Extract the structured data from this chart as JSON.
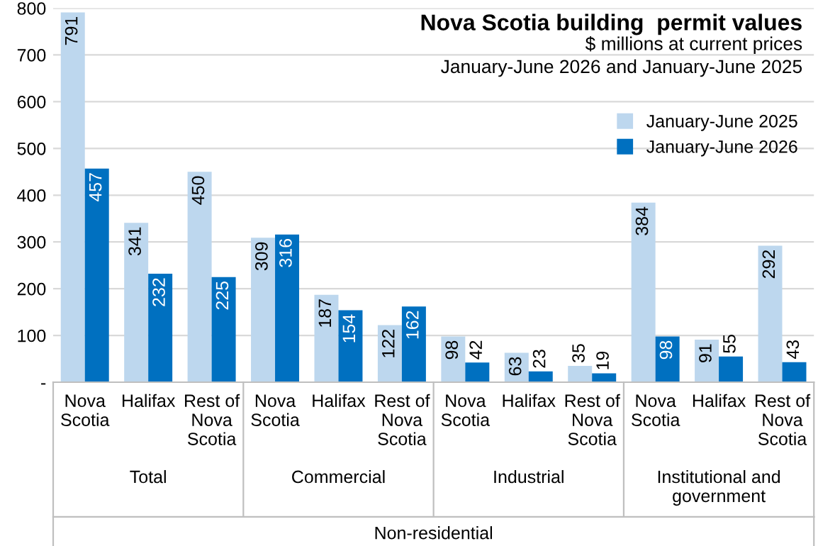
{
  "chart_data": {
    "type": "bar",
    "title": "Nova Scotia building  permit values",
    "subtitle": "$ millions at current prices\nJanuary-June 2026 and January-June 2025",
    "categories": [
      "Nova\nScotia",
      "Halifax",
      "Rest of\nNova\nScotia",
      "Nova\nScotia",
      "Halifax",
      "Rest of\nNova\nScotia",
      "Nova\nScotia",
      "Halifax",
      "Rest of\nNova\nScotia",
      "Nova\nScotia",
      "Halifax",
      "Rest of\nNova\nScotia"
    ],
    "series": [
      {
        "name": "January-June 2025",
        "color": "#bdd7ee",
        "values": [
          791,
          341,
          450,
          309,
          187,
          122,
          98,
          63,
          35,
          384,
          91,
          292
        ]
      },
      {
        "name": "January-June 2026",
        "color": "#0070c0",
        "values": [
          457,
          232,
          225,
          316,
          154,
          162,
          42,
          23,
          19,
          98,
          55,
          43
        ]
      }
    ],
    "annotations": [
      "Total",
      "Commercial",
      "Industrial",
      "Institutional and\ngovernment",
      "Non-residential"
    ],
    "ylim": [
      0,
      800
    ],
    "yticks": [
      {
        "value": 0,
        "label": "-"
      },
      100,
      200,
      300,
      400,
      500,
      600,
      700,
      800
    ],
    "grid": "y",
    "legend": "right",
    "data_labels": true
  }
}
